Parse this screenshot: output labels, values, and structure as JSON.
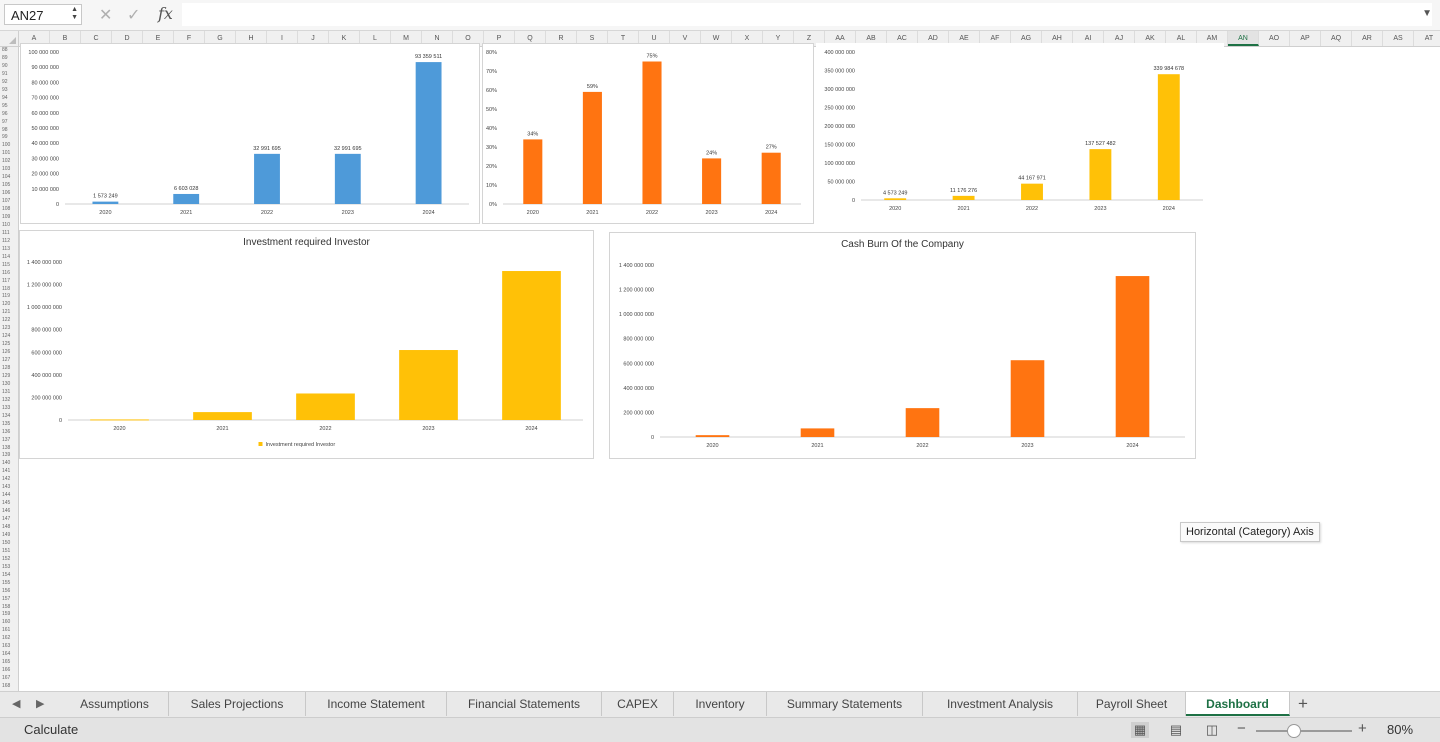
{
  "formula_bar": {
    "cell_reference": "AN27",
    "cancel_icon": "close-icon",
    "enter_icon": "check-icon",
    "function_label": "fx",
    "formula_value": ""
  },
  "columns": [
    "A",
    "B",
    "C",
    "D",
    "E",
    "F",
    "G",
    "H",
    "I",
    "J",
    "K",
    "L",
    "M",
    "N",
    "O",
    "P",
    "Q",
    "R",
    "S",
    "T",
    "U",
    "V",
    "W",
    "X",
    "Y",
    "Z",
    "AA",
    "AB",
    "AC",
    "AD",
    "AE",
    "AF",
    "AG",
    "AH",
    "AI",
    "AJ",
    "AK",
    "AL",
    "AM",
    "AN",
    "AO",
    "AP",
    "AQ",
    "AR",
    "AS",
    "AT"
  ],
  "selected_column": "AN",
  "row_start": 88,
  "row_end": 168,
  "colors": {
    "blue": "#4e9ad9",
    "orange": "#ff7411",
    "yellow": "#ffc107",
    "accent": "#1e7145"
  },
  "chart_data": [
    {
      "type": "bar",
      "title": "",
      "categories": [
        "2020",
        "2021",
        "2022",
        "2023",
        "2024"
      ],
      "values": [
        1573249,
        6603028,
        32991695,
        32991695,
        93359511
      ],
      "data_labels": [
        "1 573 249",
        "6 603 028",
        "32 991 695",
        "32 991 695",
        "93 359 511"
      ],
      "yticks": [
        "0",
        "10 000 000",
        "20 000 000",
        "30 000 000",
        "40 000 000",
        "50 000 000",
        "60 000 000",
        "70 000 000",
        "80 000 000",
        "90 000 000",
        "100 000 000"
      ],
      "ylim": [
        0,
        100000000
      ],
      "color": "#4e9ad9",
      "grid": false
    },
    {
      "type": "bar",
      "title": "",
      "categories": [
        "2020",
        "2021",
        "2022",
        "2023",
        "2024"
      ],
      "values": [
        34,
        59,
        75,
        24,
        27
      ],
      "data_labels": [
        "34%",
        "59%",
        "75%",
        "24%",
        "27%"
      ],
      "yticks": [
        "0%",
        "10%",
        "20%",
        "30%",
        "40%",
        "50%",
        "60%",
        "70%",
        "80%"
      ],
      "ylim": [
        0,
        80
      ],
      "color": "#ff7411",
      "grid": false
    },
    {
      "type": "bar",
      "title": "",
      "categories": [
        "2020",
        "2021",
        "2022",
        "2023",
        "2024"
      ],
      "values": [
        4573249,
        11176276,
        44167971,
        137527482,
        339984678
      ],
      "data_labels": [
        "4 573 249",
        "11 176 276",
        "44 167 971",
        "137 527 482",
        "339 984 678"
      ],
      "yticks": [
        "0",
        "50 000 000",
        "100 000 000",
        "150 000 000",
        "200 000 000",
        "250 000 000",
        "300 000 000",
        "350 000 000",
        "400 000 000"
      ],
      "ylim": [
        0,
        400000000
      ],
      "color": "#ffc107",
      "grid": false
    },
    {
      "type": "bar",
      "title": "Investment required Investor",
      "categories": [
        "2020",
        "2021",
        "2022",
        "2023",
        "2024"
      ],
      "values": [
        5000000,
        70000000,
        235000000,
        620000000,
        1320000000
      ],
      "yticks": [
        "0",
        "200 000 000",
        "400 000 000",
        "600 000 000",
        "800 000 000",
        "1 000 000 000",
        "1 200 000 000",
        "1 400 000 000"
      ],
      "ylim": [
        0,
        1400000000
      ],
      "color": "#ffc107",
      "legend": "Investment required Investor",
      "legend_position": "bottom",
      "grid": false
    },
    {
      "type": "bar",
      "title": "Cash Burn Of the Company",
      "categories": [
        "2020",
        "2021",
        "2022",
        "2023",
        "2024"
      ],
      "values": [
        15000000,
        70000000,
        235000000,
        625000000,
        1310000000
      ],
      "yticks": [
        "0",
        "200 000 000",
        "400 000 000",
        "600 000 000",
        "800 000 000",
        "1 000 000 000",
        "1 200 000 000",
        "1 400 000 000"
      ],
      "ylim": [
        0,
        1400000000
      ],
      "color": "#ff7411",
      "grid": false
    }
  ],
  "tooltip": "Horizontal (Category) Axis",
  "sheet_tabs": [
    "Assumptions",
    "Sales Projections",
    "Income Statement",
    "Financial Statements",
    "CAPEX",
    "Inventory",
    "Summary Statements",
    "Investment Analysis",
    "Payroll Sheet",
    "Dashboard"
  ],
  "active_tab": "Dashboard",
  "status": {
    "text": "Calculate",
    "zoom": "80%",
    "zoom_fraction": 0.5
  }
}
